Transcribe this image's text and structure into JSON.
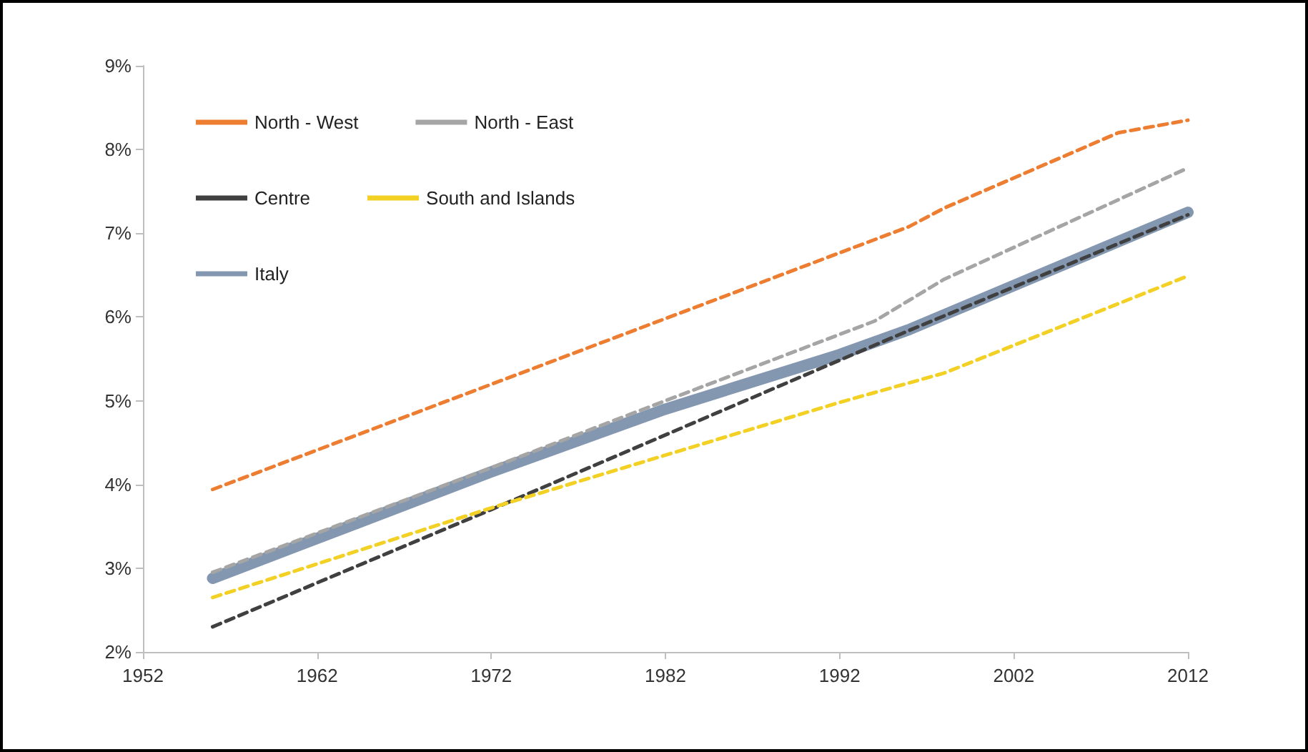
{
  "chart_data": {
    "type": "line",
    "xlim": [
      1952,
      2012
    ],
    "xticks": [
      1952,
      1962,
      1972,
      1982,
      1992,
      2002,
      2012
    ],
    "ylim": [
      2,
      9
    ],
    "yticks": [
      {
        "value": 2,
        "label": "2%"
      },
      {
        "value": 3,
        "label": "3%"
      },
      {
        "value": 4,
        "label": "4%"
      },
      {
        "value": 5,
        "label": "5%"
      },
      {
        "value": 6,
        "label": "6%"
      },
      {
        "value": 7,
        "label": "7%"
      },
      {
        "value": 8,
        "label": "8%"
      },
      {
        "value": 9,
        "label": "9%"
      }
    ],
    "grid": false,
    "legend": "top left",
    "marker": "none",
    "series": [
      {
        "name": "North - West",
        "color": "#ed7d31",
        "line_style": "dashed",
        "x": [
          1956,
          1996,
          1998,
          2008,
          2012
        ],
        "values": [
          3.94,
          7.08,
          7.3,
          8.2,
          8.35
        ]
      },
      {
        "name": "North - East",
        "color": "#a5a5a5",
        "line_style": "dashed",
        "x": [
          1956,
          1972,
          1982,
          1994,
          1998,
          2012
        ],
        "values": [
          2.95,
          4.2,
          5.0,
          5.95,
          6.45,
          7.78
        ]
      },
      {
        "name": "Centre",
        "color": "#404040",
        "line_style": "dashed",
        "x": [
          1956,
          1972,
          1996,
          2012
        ],
        "values": [
          2.3,
          3.7,
          5.84,
          7.22
        ]
      },
      {
        "name": "South and Islands",
        "color": "#f2d024",
        "line_style": "dashed",
        "x": [
          1956,
          1972,
          1992,
          1998,
          2012
        ],
        "values": [
          2.65,
          3.72,
          4.98,
          5.33,
          6.49
        ]
      },
      {
        "name": "Italy",
        "color": "#8497b0",
        "line_style": "solid",
        "x": [
          1956,
          1972,
          1982,
          1992,
          1996,
          2012
        ],
        "values": [
          2.88,
          4.15,
          4.9,
          5.55,
          5.85,
          7.25
        ]
      }
    ]
  }
}
